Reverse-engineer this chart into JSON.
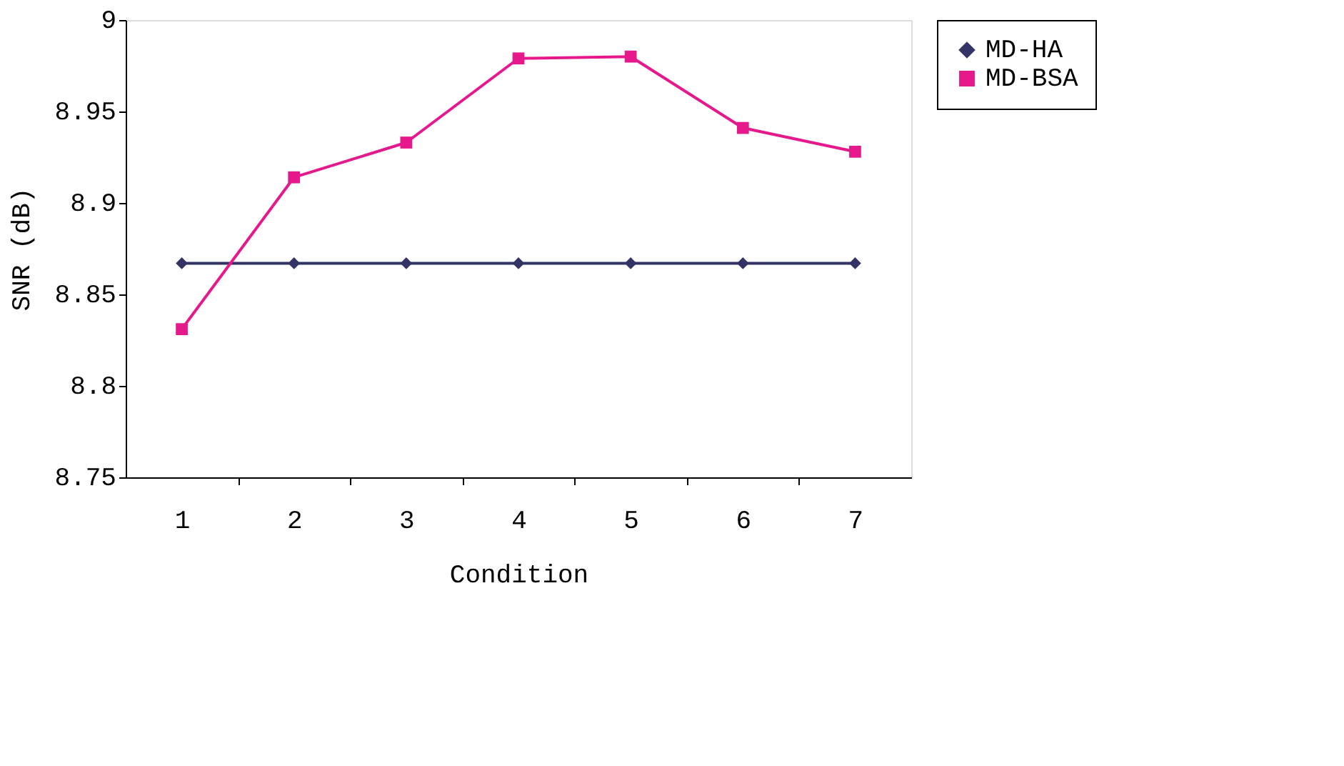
{
  "chart_data": {
    "type": "line",
    "xlabel": "Condition",
    "ylabel": "SNR (dB)",
    "categories": [
      "1",
      "2",
      "3",
      "4",
      "5",
      "6",
      "7"
    ],
    "ylim": [
      8.75,
      9
    ],
    "yticks": [
      8.75,
      {
        "value": 8.8,
        "label": "8.8"
      },
      8.85,
      {
        "value": 8.9,
        "label": "8.9"
      },
      8.95,
      {
        "value": 9,
        "label": "9"
      }
    ],
    "grid": false,
    "legend": "right",
    "line_style": "solid",
    "series": [
      {
        "name": "MD-HA",
        "color": "#333366",
        "marker": "diamond",
        "values": [
          8.867,
          8.867,
          8.867,
          8.867,
          8.867,
          8.867,
          8.867
        ]
      },
      {
        "name": "MD-BSA",
        "color": "#e6198c",
        "marker": "square",
        "values": [
          8.831,
          8.914,
          8.933,
          8.979,
          8.98,
          8.941,
          8.928
        ]
      }
    ]
  }
}
